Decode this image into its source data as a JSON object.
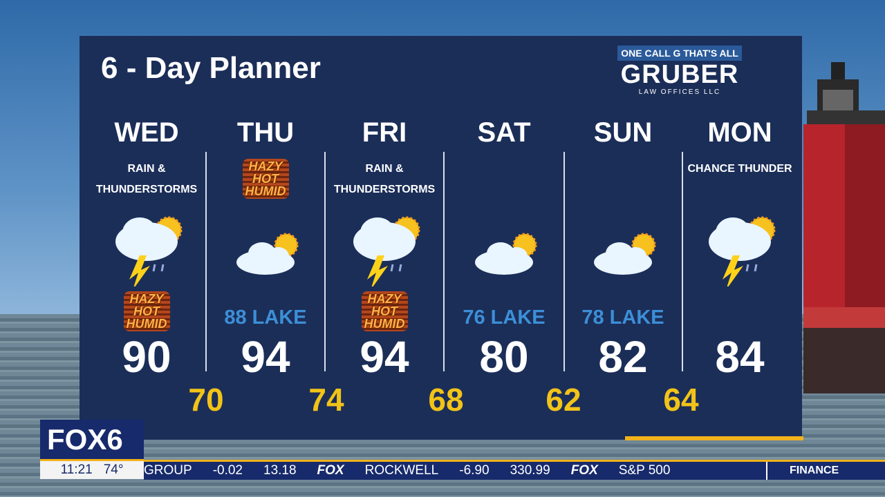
{
  "title": "6 - Day Planner",
  "sponsor": {
    "tagline_left": "ONE CALL",
    "logo_letter": "G",
    "tagline_right": "THAT'S ALL",
    "name": "GRUBER",
    "sub": "LAW OFFICES LLC"
  },
  "days": [
    {
      "day": "WED",
      "condition": "RAIN & THUNDERSTORMS",
      "icon": "sun-cloud-thunder-rain-icon",
      "badge": "HAZY HOT HUMID",
      "lake": "",
      "high": "90"
    },
    {
      "day": "THU",
      "condition": "",
      "icon": "sun-cloud-icon",
      "badge": "HAZY HOT HUMID",
      "lake": "88 LAKE",
      "high": "94"
    },
    {
      "day": "FRI",
      "condition": "RAIN & THUNDERSTORMS",
      "icon": "sun-cloud-thunder-rain-icon",
      "badge": "HAZY HOT HUMID",
      "lake": "",
      "high": "94"
    },
    {
      "day": "SAT",
      "condition": "",
      "icon": "sun-cloud-icon",
      "badge": "",
      "lake": "76 LAKE",
      "high": "80"
    },
    {
      "day": "SUN",
      "condition": "",
      "icon": "sun-cloud-icon",
      "badge": "",
      "lake": "78 LAKE",
      "high": "82"
    },
    {
      "day": "MON",
      "condition": "CHANCE THUNDER",
      "icon": "sun-cloud-thunder-rain-icon",
      "badge": "",
      "lake": "",
      "high": "84"
    }
  ],
  "lows": [
    "70",
    "74",
    "68",
    "62",
    "64"
  ],
  "station": {
    "logo": "FOX6",
    "time": "11:21",
    "temp": "74°"
  },
  "ticker": [
    "GROUP",
    "-0.02",
    "13.18",
    "FOX",
    "ROCKWELL",
    "-6.90",
    "330.99",
    "FOX",
    "S&P 500"
  ],
  "ticker_section": "FINANCE",
  "colors": {
    "panel": "#1b2e58",
    "low_temp": "#f2c318",
    "lake_temp": "#3c8fd8",
    "accent": "#f2b21a"
  }
}
